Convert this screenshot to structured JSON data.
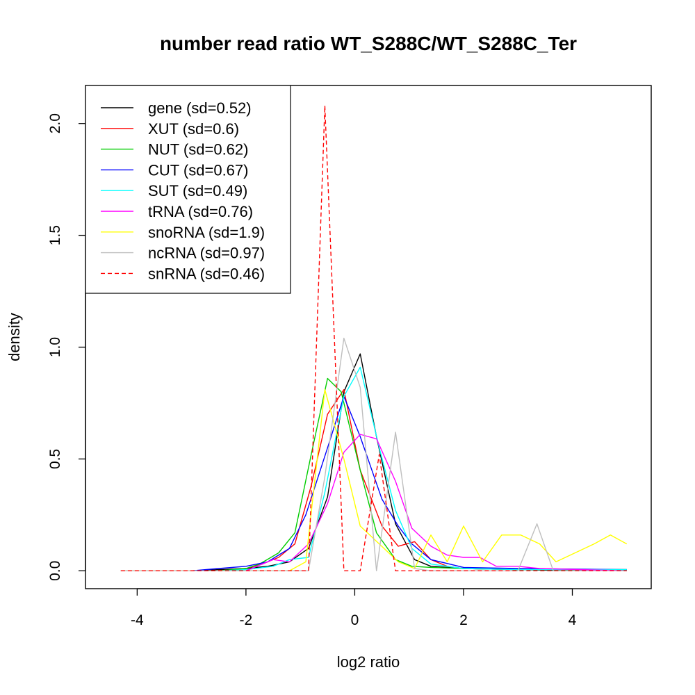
{
  "chart_data": {
    "type": "line",
    "title": "number read ratio WT_S288C/WT_S288C_Ter",
    "xlabel": "log2 ratio",
    "ylabel": "density",
    "xlim": [
      -4.95,
      5.45
    ],
    "ylim": [
      -0.08,
      2.17
    ],
    "x_ticks": [
      -4,
      -2,
      0,
      2,
      4
    ],
    "x_tick_labels": [
      "-4",
      "-2",
      "0",
      "2",
      "4"
    ],
    "y_ticks": [
      0,
      0.5,
      1,
      1.5,
      2
    ],
    "y_tick_labels": [
      "0.0",
      "0.5",
      "1.0",
      "1.5",
      "2.0"
    ],
    "grid": false,
    "legend_position": "top-left",
    "series": [
      {
        "name": "gene (sd=0.52)",
        "color": "#000000",
        "dash": "solid",
        "x": [
          -4.3,
          -4,
          -3.5,
          -3,
          -2.5,
          -2,
          -1.6,
          -1.2,
          -0.85,
          -0.5,
          -0.2,
          0.1,
          0.4,
          0.75,
          1.1,
          1.4,
          2,
          3,
          4,
          5
        ],
        "y": [
          0,
          0,
          0,
          0,
          0.005,
          0.01,
          0.02,
          0.04,
          0.1,
          0.33,
          0.8,
          0.97,
          0.6,
          0.21,
          0.05,
          0.02,
          0.01,
          0.005,
          0,
          0
        ]
      },
      {
        "name": "XUT (sd=0.6)",
        "color": "#ff0000",
        "dash": "solid",
        "x": [
          -4.3,
          -3,
          -2.5,
          -2,
          -1.7,
          -1.4,
          -1.1,
          -0.8,
          -0.5,
          -0.2,
          0.1,
          0.5,
          0.8,
          1.1,
          1.4,
          1.7,
          2,
          3,
          5
        ],
        "y": [
          0,
          0,
          0,
          0.01,
          0.03,
          0.06,
          0.12,
          0.38,
          0.7,
          0.81,
          0.45,
          0.2,
          0.11,
          0.13,
          0.05,
          0.02,
          0.01,
          0.005,
          0.005
        ]
      },
      {
        "name": "NUT (sd=0.62)",
        "color": "#00cd00",
        "dash": "solid",
        "x": [
          -4.3,
          -3,
          -2.5,
          -2,
          -1.75,
          -1.4,
          -1.1,
          -0.8,
          -0.5,
          -0.25,
          0.1,
          0.4,
          0.75,
          1.05,
          1.4,
          2,
          3,
          5
        ],
        "y": [
          0,
          0,
          0,
          0.01,
          0.03,
          0.08,
          0.17,
          0.52,
          0.86,
          0.8,
          0.45,
          0.17,
          0.05,
          0.02,
          0.015,
          0.01,
          0.005,
          0.005
        ]
      },
      {
        "name": "CUT (sd=0.67)",
        "color": "#0000ff",
        "dash": "solid",
        "x": [
          -4.3,
          -4,
          -3,
          -2.5,
          -2,
          -1.6,
          -1.2,
          -0.9,
          -0.5,
          -0.2,
          0.1,
          0.5,
          0.8,
          1.05,
          1.4,
          2,
          3,
          5
        ],
        "y": [
          0,
          0,
          0,
          0.01,
          0.02,
          0.04,
          0.1,
          0.25,
          0.55,
          0.78,
          0.6,
          0.32,
          0.2,
          0.12,
          0.05,
          0.015,
          0.01,
          0.005
        ]
      },
      {
        "name": "SUT (sd=0.49)",
        "color": "#00ffff",
        "dash": "solid",
        "x": [
          -4.3,
          -3,
          -2.5,
          -2,
          -1.5,
          -1.2,
          -0.85,
          -0.55,
          -0.2,
          0.1,
          0.45,
          0.75,
          1.05,
          1.4,
          2,
          3,
          5
        ],
        "y": [
          0,
          0,
          0,
          0.005,
          0.02,
          0.05,
          0.06,
          0.35,
          0.78,
          0.91,
          0.55,
          0.27,
          0.1,
          0.03,
          0.01,
          0.005,
          0.005
        ]
      },
      {
        "name": "tRNA (sd=0.76)",
        "color": "#ff00ff",
        "dash": "solid",
        "x": [
          -4.3,
          -3,
          -2,
          -1.8,
          -1.5,
          -1.2,
          -0.85,
          -0.5,
          -0.2,
          0.1,
          0.4,
          0.75,
          1.05,
          1.4,
          1.7,
          2,
          2.3,
          2.6,
          3,
          3.4,
          5
        ],
        "y": [
          0,
          0,
          0,
          0.02,
          0.05,
          0.04,
          0.12,
          0.3,
          0.53,
          0.61,
          0.59,
          0.4,
          0.19,
          0.11,
          0.07,
          0.06,
          0.06,
          0.02,
          0.02,
          0.01,
          0
        ]
      },
      {
        "name": "snoRNA (sd=1.9)",
        "color": "#ffff00",
        "dash": "solid",
        "x": [
          -4.3,
          -1.2,
          -0.9,
          -0.55,
          -0.2,
          0.1,
          0.45,
          0.8,
          1.1,
          1.4,
          1.7,
          2,
          2.35,
          2.7,
          3.05,
          3.4,
          3.7,
          4.05,
          4.4,
          4.7,
          5
        ],
        "y": [
          0,
          0,
          0.04,
          0.81,
          0.5,
          0.2,
          0.12,
          0.04,
          0.01,
          0.16,
          0.04,
          0.2,
          0.04,
          0.16,
          0.16,
          0.12,
          0.04,
          0.08,
          0.12,
          0.16,
          0.12
        ]
      },
      {
        "name": "ncRNA (sd=0.97)",
        "color": "#bebebe",
        "dash": "solid",
        "x": [
          -4.3,
          -1.2,
          -0.85,
          -0.55,
          -0.2,
          0.1,
          0.4,
          0.75,
          1.1,
          1.4,
          2,
          3,
          3.35,
          3.65,
          5
        ],
        "y": [
          0,
          0,
          0,
          0.42,
          1.04,
          0.82,
          0,
          0.62,
          0.01,
          0,
          0,
          0,
          0.21,
          0,
          0
        ]
      },
      {
        "name": "snRNA (sd=0.46)",
        "color": "#ff0000",
        "dash": "dashed",
        "x": [
          -4.3,
          -1.2,
          -0.85,
          -0.55,
          -0.2,
          0.1,
          0.45,
          0.75,
          1.1,
          5
        ],
        "y": [
          0,
          0,
          0,
          2.08,
          0,
          0,
          0.52,
          0,
          0,
          0
        ]
      }
    ]
  }
}
